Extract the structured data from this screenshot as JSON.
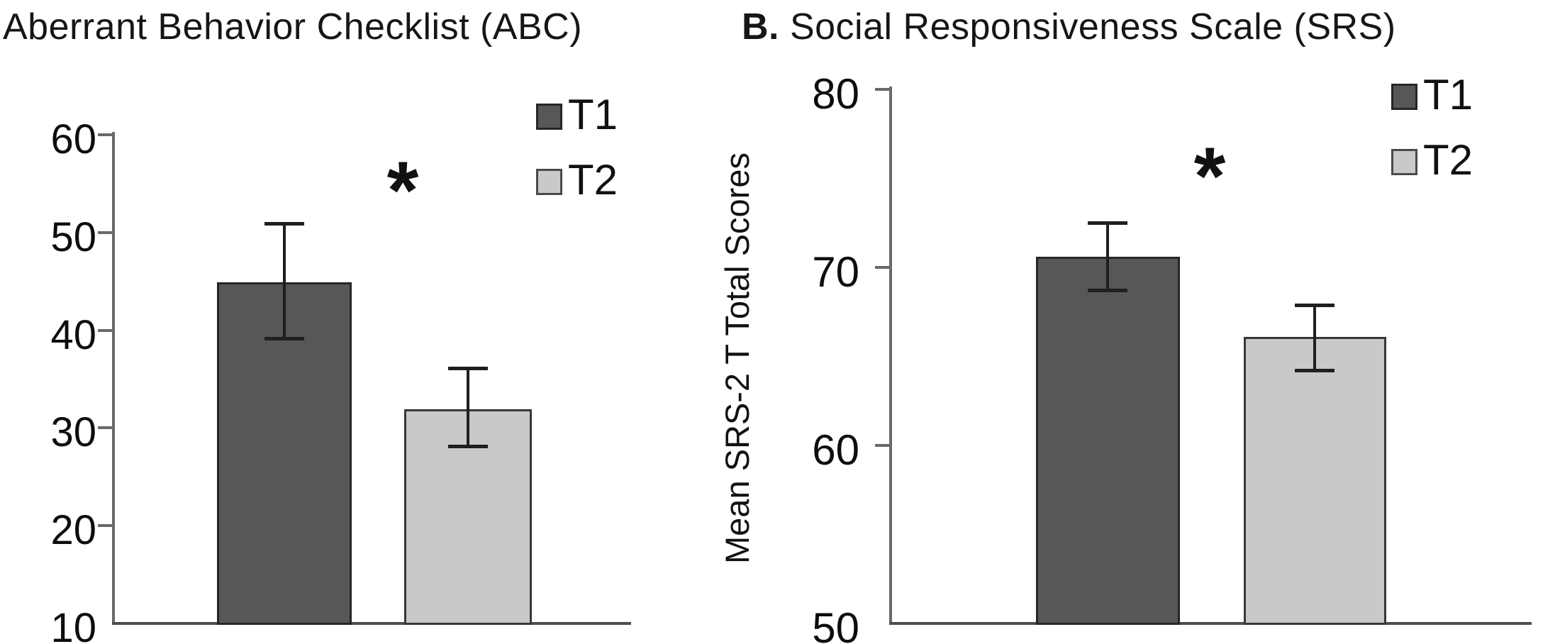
{
  "figure": {
    "description_note": "Two-panel bar figure comparing scores at two timepoints",
    "background_color": "#ffffff",
    "text_color": "#111111",
    "axis_color": "#696969",
    "baseline_color": "#4d4d4d",
    "error_bar_color": "#1f1f1f"
  },
  "chart_data": [
    {
      "type": "bar",
      "title": "Aberrant Behavior Checklist (ABC)",
      "title_prefix": "",
      "xlabel": "",
      "ylabel": "",
      "ylim": [
        10,
        60
      ],
      "yticks": [
        10,
        20,
        30,
        40,
        50,
        60
      ],
      "grid": false,
      "legend_position": "top-right",
      "significance": "*",
      "categories": [
        "T1",
        "T2"
      ],
      "bars": [
        {
          "label": "T1",
          "value": 44.9,
          "err_low": 39.1,
          "err_high": 50.9,
          "color": "#575757",
          "border": "#262626"
        },
        {
          "label": "T2",
          "value": 31.9,
          "err_low": 28.1,
          "err_high": 36.1,
          "color": "#c9c9c9",
          "border": "#383838"
        }
      ]
    },
    {
      "type": "bar",
      "title": "Social Responsiveness Scale (SRS)",
      "title_prefix": "B.",
      "xlabel": "",
      "ylabel": "Mean SRS-2 T Total Scores",
      "ylim": [
        50,
        80
      ],
      "yticks": [
        50,
        60,
        70,
        80
      ],
      "grid": false,
      "legend_position": "top-right",
      "significance": "*",
      "categories": [
        "T1",
        "T2"
      ],
      "bars": [
        {
          "label": "T1",
          "value": 70.6,
          "err_low": 68.7,
          "err_high": 72.5,
          "color": "#575757",
          "border": "#262626"
        },
        {
          "label": "T2",
          "value": 66.1,
          "err_low": 64.2,
          "err_high": 67.9,
          "color": "#c9c9c9",
          "border": "#383838"
        }
      ]
    }
  ]
}
